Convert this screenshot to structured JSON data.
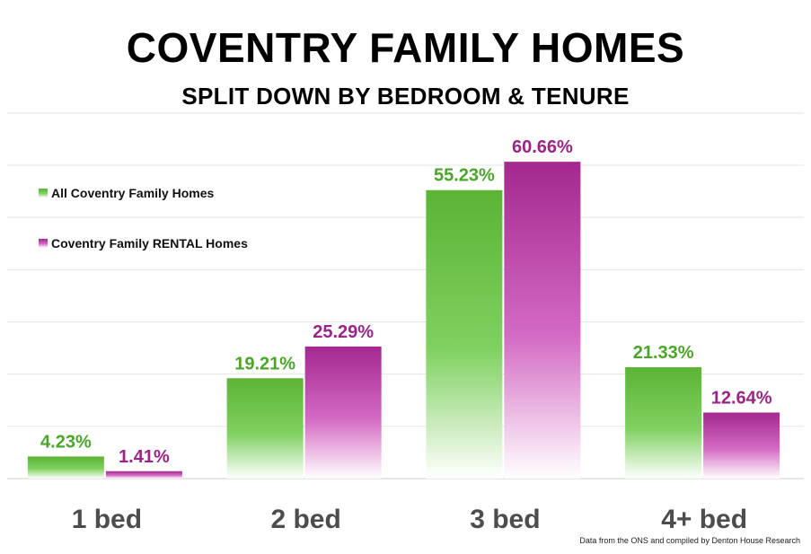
{
  "chart_data": {
    "type": "bar",
    "title": "COVENTRY FAMILY HOMES",
    "subtitle": "SPLIT DOWN BY BEDROOM & TENURE",
    "categories": [
      "1 bed",
      "2 bed",
      "3 bed",
      "4+ bed"
    ],
    "series": [
      {
        "name": "All Coventry Family Homes",
        "values": [
          4.23,
          19.21,
          55.23,
          21.33
        ],
        "labels": [
          "4.23%",
          "19.21%",
          "55.23%",
          "21.33%"
        ],
        "color": "#5cb335"
      },
      {
        "name": "Coventry Family RENTAL Homes",
        "values": [
          1.41,
          25.29,
          60.66,
          12.64
        ],
        "labels": [
          "1.41%",
          "25.29%",
          "60.66%",
          "12.64%"
        ],
        "color": "#a3288f"
      }
    ],
    "ylim": [
      0,
      70
    ],
    "grid": true,
    "legend_position": "top-left",
    "source": "Data from the ONS and compiled by Denton House Research"
  },
  "colors": {
    "green": "#5cb335",
    "green_label": "#4aa52a",
    "purple": "#a3288f",
    "purple_label": "#9a2487",
    "category_text": "#4d4d4d"
  }
}
